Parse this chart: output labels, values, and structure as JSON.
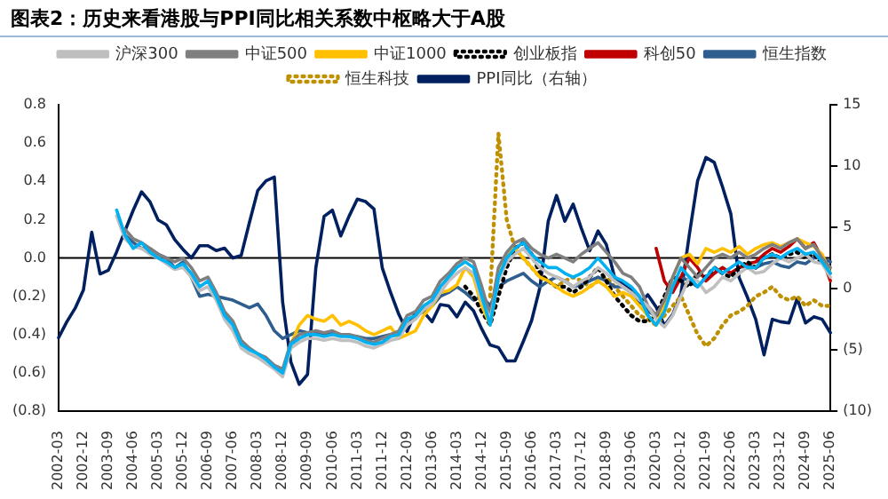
{
  "chart_data": {
    "type": "line",
    "title": "图表2：历史来看港股与PPI同比相关系数中枢略大于A股",
    "legend": "top",
    "categories": [
      "2002-03",
      null,
      null,
      "2002-12",
      null,
      null,
      "2003-09",
      null,
      null,
      "2004-06",
      null,
      null,
      "2005-03",
      null,
      null,
      "2005-12",
      null,
      null,
      "2006-09",
      null,
      null,
      "2007-06",
      null,
      null,
      "2008-03",
      null,
      null,
      "2008-12",
      null,
      null,
      "2009-09",
      null,
      null,
      "2010-06",
      null,
      null,
      "2011-03",
      null,
      null,
      "2011-12",
      null,
      null,
      "2012-09",
      null,
      null,
      "2013-06",
      null,
      null,
      "2014-03",
      null,
      null,
      "2014-12",
      null,
      null,
      "2015-09",
      null,
      null,
      "2016-06",
      null,
      null,
      "2017-03",
      null,
      null,
      "2017-12",
      null,
      null,
      "2018-09",
      null,
      null,
      "2019-06",
      null,
      null,
      "2020-03",
      null,
      null,
      "2020-12",
      null,
      null,
      "2021-09",
      null,
      null,
      "2022-06",
      null,
      null,
      "2023-03",
      null,
      null,
      "2023-12",
      null,
      null,
      "2024-09",
      null,
      null,
      "2025-06"
    ],
    "ylim": [
      -0.8,
      0.8
    ],
    "yticks": [
      {
        "value": -0.8,
        "label": "(0.8)"
      },
      {
        "value": -0.6,
        "label": "(0.6)"
      },
      {
        "value": -0.4,
        "label": "(0.4)"
      },
      {
        "value": -0.2,
        "label": "(0.2)"
      },
      {
        "value": 0,
        "label": "0.0"
      },
      0.2,
      0.4,
      0.6,
      0.8
    ],
    "y2lim": [
      -10,
      15
    ],
    "y2ticks": [
      {
        "value": -10,
        "label": "(10)"
      },
      {
        "value": -5,
        "label": "(5)"
      },
      0,
      5,
      10,
      15
    ],
    "ref_lines": [
      {
        "axis": "y",
        "value": 0,
        "color": "#000000"
      }
    ],
    "series": [
      {
        "color": "#00b0f0",
        "line_style": "solid",
        "values": [
          null,
          null,
          null,
          null,
          null,
          null,
          null,
          0.25,
          0.12,
          0.05,
          0.08,
          0.03,
          0.0,
          -0.02,
          -0.05,
          -0.03,
          -0.08,
          -0.15,
          -0.12,
          -0.2,
          -0.3,
          -0.35,
          -0.45,
          -0.48,
          -0.5,
          -0.53,
          -0.57,
          -0.6,
          -0.45,
          -0.42,
          -0.4,
          -0.4,
          -0.41,
          -0.4,
          -0.41,
          -0.41,
          -0.42,
          -0.44,
          -0.45,
          -0.44,
          -0.41,
          -0.4,
          -0.32,
          -0.3,
          -0.25,
          -0.22,
          -0.15,
          -0.1,
          -0.05,
          -0.02,
          -0.05,
          -0.2,
          -0.35,
          -0.1,
          0.0,
          0.05,
          0.08,
          0.02,
          -0.02,
          -0.05,
          -0.05,
          -0.08,
          -0.1,
          -0.08,
          -0.05,
          0.0,
          -0.05,
          -0.1,
          -0.12,
          -0.15,
          -0.2,
          -0.3,
          -0.35,
          -0.28,
          -0.15,
          -0.05,
          -0.1,
          -0.15,
          -0.1,
          -0.05,
          -0.08,
          -0.05,
          -0.02,
          -0.05,
          -0.05,
          0.0,
          0.02,
          0.0,
          0.03,
          0.05,
          0.02,
          0.03,
          -0.02,
          -0.08
        ]
      },
      {
        "name": "沪深300",
        "color": "#bfbfbf",
        "line_style": "solid",
        "values": [
          null,
          null,
          null,
          null,
          null,
          null,
          null,
          0.22,
          0.1,
          0.06,
          0.05,
          0.02,
          0.0,
          -0.03,
          -0.06,
          -0.05,
          -0.1,
          -0.17,
          -0.15,
          -0.22,
          -0.32,
          -0.38,
          -0.47,
          -0.5,
          -0.52,
          -0.55,
          -0.58,
          -0.62,
          -0.47,
          -0.44,
          -0.42,
          -0.42,
          -0.43,
          -0.42,
          -0.43,
          -0.43,
          -0.44,
          -0.46,
          -0.47,
          -0.45,
          -0.43,
          -0.42,
          -0.35,
          -0.32,
          -0.27,
          -0.24,
          -0.18,
          -0.12,
          -0.08,
          -0.05,
          -0.08,
          -0.22,
          -0.32,
          -0.12,
          -0.02,
          0.02,
          0.05,
          0.0,
          -0.05,
          -0.08,
          -0.1,
          -0.12,
          -0.15,
          -0.12,
          -0.1,
          -0.05,
          -0.08,
          -0.12,
          -0.15,
          -0.18,
          -0.22,
          -0.25,
          -0.32,
          -0.36,
          -0.3,
          -0.2,
          -0.1,
          -0.12,
          -0.18,
          -0.15,
          -0.1,
          -0.12,
          -0.08,
          -0.05,
          -0.08,
          -0.07,
          -0.03,
          0.0,
          -0.02,
          0.0,
          0.02,
          -0.02,
          -0.03,
          -0.1
        ]
      },
      {
        "name": "中证500",
        "color": "#7f7f7f",
        "line_style": "solid",
        "values": [
          null,
          null,
          null,
          null,
          null,
          null,
          null,
          null,
          0.15,
          0.1,
          0.08,
          0.05,
          0.02,
          0.0,
          -0.02,
          0.0,
          -0.05,
          -0.12,
          -0.1,
          -0.18,
          -0.28,
          -0.33,
          -0.43,
          -0.47,
          -0.5,
          -0.52,
          -0.56,
          -0.58,
          -0.44,
          -0.4,
          -0.39,
          -0.38,
          -0.39,
          -0.38,
          -0.4,
          -0.4,
          -0.41,
          -0.43,
          -0.44,
          -0.42,
          -0.4,
          -0.38,
          -0.3,
          -0.28,
          -0.22,
          -0.2,
          -0.12,
          -0.08,
          -0.03,
          0.0,
          -0.02,
          -0.15,
          -0.3,
          -0.05,
          0.03,
          0.08,
          0.1,
          0.05,
          0.02,
          0.0,
          0.02,
          0.0,
          -0.02,
          0.02,
          0.05,
          0.08,
          0.03,
          -0.02,
          -0.08,
          -0.1,
          -0.15,
          -0.25,
          -0.3,
          -0.22,
          -0.1,
          0.0,
          -0.05,
          -0.1,
          -0.05,
          0.0,
          0.02,
          0.0,
          0.03,
          0.0,
          0.02,
          0.05,
          0.07,
          0.05,
          0.08,
          0.1,
          0.05,
          0.07,
          0.0,
          -0.05
        ]
      },
      {
        "name": "中证1000",
        "color": "#ffc000",
        "line_style": "solid",
        "values": [
          null,
          null,
          null,
          null,
          null,
          null,
          null,
          null,
          null,
          null,
          null,
          null,
          null,
          null,
          null,
          null,
          null,
          null,
          null,
          null,
          null,
          null,
          null,
          null,
          null,
          null,
          null,
          null,
          -0.45,
          -0.35,
          -0.3,
          -0.32,
          -0.33,
          -0.3,
          -0.35,
          -0.33,
          -0.35,
          -0.38,
          -0.4,
          -0.38,
          -0.36,
          -0.42,
          -0.4,
          -0.38,
          -0.3,
          -0.25,
          -0.18,
          -0.17,
          -0.14,
          -0.05,
          -0.1,
          -0.25,
          -0.35,
          -0.1,
          0.02,
          0.05,
          0.0,
          -0.05,
          -0.1,
          -0.12,
          -0.15,
          -0.18,
          -0.2,
          -0.18,
          -0.15,
          -0.12,
          -0.15,
          -0.2,
          -0.18,
          -0.2,
          -0.25,
          -0.3,
          -0.35,
          -0.25,
          -0.1,
          0.0,
          0.02,
          -0.03,
          0.05,
          0.03,
          0.05,
          0.03,
          0.06,
          0.02,
          0.05,
          0.07,
          0.08,
          0.06,
          0.08,
          0.1,
          0.08,
          0.06,
          0.02,
          -0.08
        ]
      },
      {
        "name": "创业板指",
        "color": "#000000",
        "line_style": "dotted",
        "values": [
          null,
          null,
          null,
          null,
          null,
          null,
          null,
          null,
          null,
          null,
          null,
          null,
          null,
          null,
          null,
          null,
          null,
          null,
          null,
          null,
          null,
          null,
          null,
          null,
          null,
          null,
          null,
          null,
          null,
          null,
          null,
          null,
          null,
          null,
          null,
          null,
          null,
          null,
          null,
          null,
          null,
          null,
          null,
          null,
          null,
          null,
          null,
          null,
          null,
          -0.15,
          -0.2,
          -0.28,
          -0.35,
          -0.2,
          -0.05,
          0.05,
          0.08,
          0.02,
          -0.08,
          -0.12,
          -0.15,
          -0.15,
          -0.18,
          -0.15,
          -0.1,
          -0.05,
          -0.12,
          -0.2,
          -0.25,
          -0.3,
          -0.33,
          -0.33,
          -0.3,
          -0.2,
          -0.1,
          -0.12,
          -0.15,
          -0.08,
          -0.1,
          -0.05,
          -0.08,
          -0.1,
          -0.05,
          -0.02,
          -0.05,
          0.0,
          0.02,
          0.0,
          0.02,
          0.03,
          0.0,
          0.02,
          -0.03,
          -0.05
        ]
      },
      {
        "name": "科创50",
        "color": "#c00000",
        "line_style": "solid",
        "values": [
          null,
          null,
          null,
          null,
          null,
          null,
          null,
          null,
          null,
          null,
          null,
          null,
          null,
          null,
          null,
          null,
          null,
          null,
          null,
          null,
          null,
          null,
          null,
          null,
          null,
          null,
          null,
          null,
          null,
          null,
          null,
          null,
          null,
          null,
          null,
          null,
          null,
          null,
          null,
          null,
          null,
          null,
          null,
          null,
          null,
          null,
          null,
          null,
          null,
          null,
          null,
          null,
          null,
          null,
          null,
          null,
          null,
          null,
          null,
          null,
          null,
          null,
          null,
          null,
          null,
          null,
          null,
          null,
          null,
          null,
          null,
          null,
          0.05,
          -0.12,
          -0.18,
          -0.1,
          0.0,
          -0.05,
          -0.12,
          -0.08,
          -0.05,
          -0.08,
          -0.05,
          -0.03,
          -0.02,
          0.02,
          0.05,
          0.03,
          0.06,
          0.1,
          0.05,
          0.08,
          0.0,
          -0.12
        ]
      },
      {
        "name": "恒生指数",
        "color": "#2e5e8e",
        "line_style": "solid",
        "values": [
          null,
          null,
          null,
          null,
          null,
          null,
          null,
          null,
          0.12,
          0.08,
          0.05,
          0.05,
          0.02,
          0.0,
          -0.05,
          -0.02,
          -0.1,
          -0.2,
          -0.19,
          -0.2,
          -0.21,
          -0.22,
          -0.24,
          -0.26,
          -0.24,
          -0.3,
          -0.38,
          -0.42,
          -0.4,
          -0.38,
          -0.39,
          -0.39,
          -0.4,
          -0.39,
          -0.4,
          -0.41,
          -0.41,
          -0.42,
          -0.42,
          -0.41,
          -0.4,
          -0.39,
          -0.35,
          -0.3,
          -0.28,
          -0.25,
          -0.2,
          -0.18,
          -0.15,
          -0.18,
          -0.22,
          -0.2,
          -0.25,
          -0.15,
          -0.12,
          -0.1,
          -0.08,
          -0.12,
          -0.15,
          -0.12,
          -0.1,
          -0.12,
          -0.15,
          -0.14,
          -0.12,
          -0.1,
          -0.12,
          -0.15,
          -0.15,
          -0.18,
          -0.22,
          -0.28,
          -0.3,
          -0.25,
          -0.15,
          -0.1,
          -0.12,
          -0.15,
          -0.1,
          -0.08,
          -0.05,
          -0.08,
          -0.05,
          -0.04,
          -0.05,
          -0.03,
          -0.02,
          -0.04,
          -0.05,
          -0.02,
          -0.03,
          0.0,
          0.0,
          -0.02
        ]
      },
      {
        "name": "恒生科技",
        "color": "#bf9000",
        "line_style": "dotted",
        "values": [
          null,
          null,
          null,
          null,
          null,
          null,
          null,
          null,
          null,
          null,
          null,
          null,
          null,
          null,
          null,
          null,
          null,
          null,
          null,
          null,
          null,
          null,
          null,
          null,
          null,
          null,
          null,
          null,
          null,
          null,
          null,
          null,
          null,
          null,
          null,
          null,
          null,
          null,
          null,
          null,
          null,
          null,
          null,
          null,
          null,
          null,
          null,
          null,
          null,
          null,
          null,
          null,
          -0.2,
          0.65,
          0.2,
          0.05,
          0.0,
          -0.05,
          -0.1,
          -0.12,
          -0.15,
          -0.12,
          -0.1,
          -0.12,
          -0.15,
          -0.12,
          -0.1,
          -0.15,
          -0.2,
          -0.25,
          -0.3,
          -0.32,
          -0.35,
          -0.3,
          -0.25,
          -0.2,
          -0.3,
          -0.4,
          -0.46,
          -0.42,
          -0.35,
          -0.3,
          -0.28,
          -0.25,
          -0.2,
          -0.18,
          -0.15,
          -0.2,
          -0.22,
          -0.2,
          -0.25,
          -0.22,
          -0.25,
          -0.25
        ]
      },
      {
        "name": "PPI同比（右轴）",
        "color": "#002060",
        "line_style": "solid",
        "axis": "y2",
        "values": [
          -4.0,
          -2.7,
          -1.6,
          -0.1,
          4.6,
          1.2,
          1.5,
          3.0,
          4.7,
          6.4,
          7.9,
          7.1,
          5.6,
          5.2,
          4.0,
          3.2,
          2.5,
          3.5,
          3.5,
          3.1,
          3.3,
          2.5,
          2.7,
          5.4,
          8.0,
          8.8,
          9.1,
          -1.1,
          -6.0,
          -7.8,
          -7.0,
          1.7,
          5.9,
          6.4,
          4.3,
          5.9,
          7.3,
          7.1,
          6.5,
          1.7,
          -0.3,
          -2.1,
          -3.5,
          -1.9,
          -1.9,
          -2.7,
          -1.3,
          -1.4,
          -2.3,
          -1.1,
          -1.8,
          -3.3,
          -4.6,
          -4.8,
          -5.9,
          -5.9,
          -4.3,
          -2.6,
          0.1,
          5.5,
          7.6,
          5.5,
          6.9,
          4.9,
          3.1,
          4.7,
          3.6,
          0.9,
          0.4,
          0.0,
          -1.2,
          -0.5,
          -1.5,
          -3.0,
          -2.1,
          -0.4,
          4.4,
          8.8,
          10.7,
          10.3,
          8.3,
          6.1,
          0.9,
          -0.7,
          -2.5,
          -5.4,
          -2.5,
          -2.7,
          -2.8,
          -0.8,
          -2.8,
          -2.3,
          -2.5,
          -3.6
        ]
      }
    ]
  }
}
